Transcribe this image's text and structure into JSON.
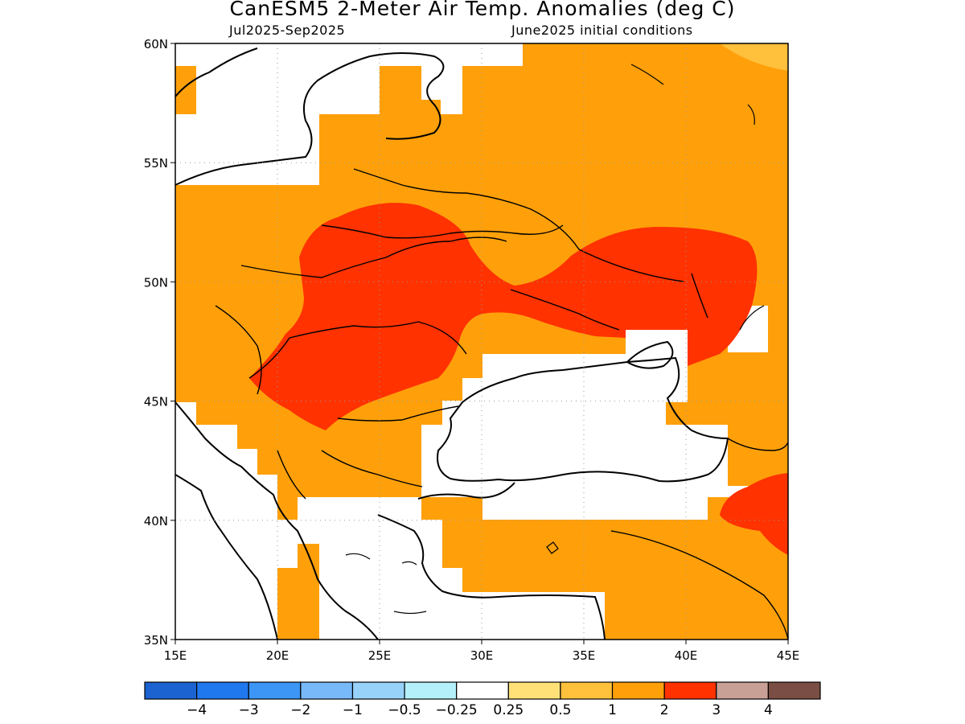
{
  "title": "CanESM5 2-Meter Air Temp. Anomalies (deg C)",
  "subtitle_left": "Jul2025-Sep2025",
  "subtitle_right": "June2025 initial conditions",
  "map": {
    "lon_range": [
      15,
      45
    ],
    "lat_range": [
      35,
      60
    ],
    "lon_ticks": [
      "15E",
      "20E",
      "25E",
      "30E",
      "35E",
      "40E",
      "45E"
    ],
    "lat_ticks": [
      "60N",
      "55N",
      "50N",
      "45N",
      "40N",
      "35N"
    ],
    "gridlines": "dotted",
    "dominant_anomaly_class": "1 to 2 deg C",
    "warmest_regions": [
      "Ukraine and Romania (2 to 3 deg C)",
      "southern Russia near 40E (2 to 3 deg C)",
      "eastern Turkey/Caucasus (2 to 3 deg C)"
    ]
  },
  "colorbar": {
    "labels": [
      "-4",
      "-3",
      "-2",
      "-1",
      "-0.5",
      "-0.25",
      "0.25",
      "0.5",
      "1",
      "2",
      "3",
      "4"
    ],
    "colors": [
      "#1c63d2",
      "#1f78ee",
      "#3c96f5",
      "#78b9fa",
      "#96d2fa",
      "#b4f0fa",
      "#ffffff",
      "#ffe178",
      "#ffc03c",
      "#ffa00a",
      "#ff3200",
      "#c8a096",
      "#7a4e44"
    ]
  }
}
